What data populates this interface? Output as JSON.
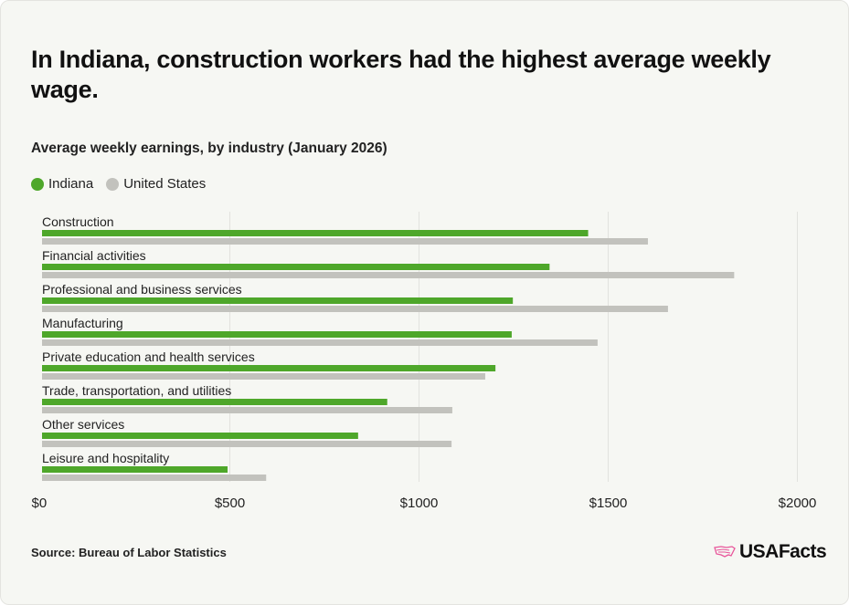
{
  "title": "In Indiana, construction workers had the highest average weekly wage.",
  "source": "Source: Bureau of Labor Statistics",
  "logo_text": "USAFacts",
  "chart_data": {
    "type": "bar",
    "orientation": "horizontal",
    "title": "Average weekly earnings, by industry (January 2026)",
    "categories": [
      "Construction",
      "Financial activities",
      "Professional and business services",
      "Manufacturing",
      "Private education and health services",
      "Trade, transportation, and utilities",
      "Other services",
      "Leisure and hospitality"
    ],
    "series": [
      {
        "name": "Indiana",
        "color": "#4ea72a",
        "values": [
          1447,
          1345,
          1248,
          1245,
          1202,
          916,
          839,
          494
        ]
      },
      {
        "name": "United States",
        "color": "#c2c2bd",
        "values": [
          1605,
          1833,
          1658,
          1472,
          1175,
          1088,
          1086,
          596
        ]
      }
    ],
    "xlim": [
      0,
      2000
    ],
    "xticks": [
      0,
      500,
      1000,
      1500,
      2000
    ],
    "xtick_labels": [
      "$0",
      "$500",
      "$1000",
      "$1500",
      "$2000"
    ],
    "grid": true,
    "legend": "top-left"
  }
}
